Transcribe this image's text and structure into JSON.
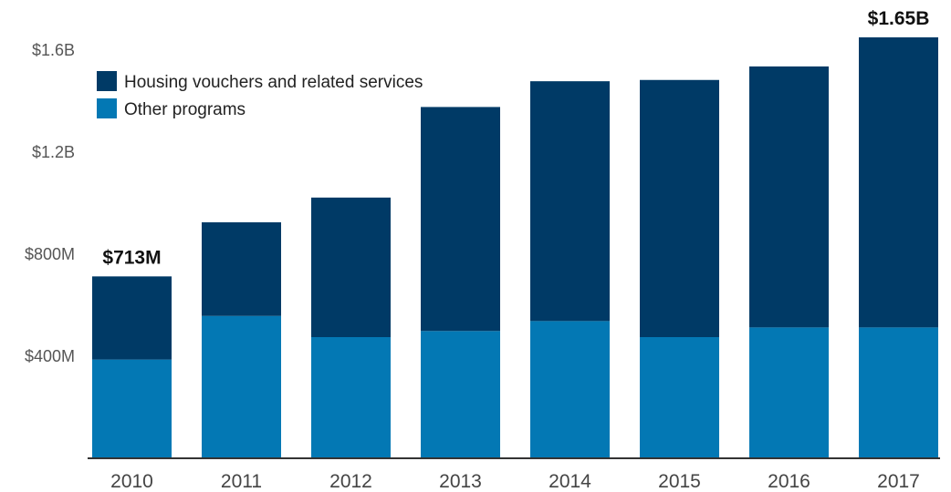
{
  "chart_data": {
    "type": "bar",
    "stacked": true,
    "title": "",
    "xlabel": "",
    "ylabel": "",
    "categories": [
      "2010",
      "2011",
      "2012",
      "2013",
      "2014",
      "2015",
      "2016",
      "2017"
    ],
    "series": [
      {
        "name": "Other programs",
        "color": "#0378b4",
        "values": [
          387,
          558,
          475,
          499,
          538,
          475,
          513,
          513
        ]
      },
      {
        "name": "Housing vouchers and related services",
        "color": "#003a66",
        "values": [
          326,
          367,
          547,
          878,
          940,
          1008,
          1023,
          1137
        ]
      }
    ],
    "ylim": [
      0,
      1700
    ],
    "yticks": [
      {
        "value": 400,
        "label": "$400M"
      },
      {
        "value": 800,
        "label": "$800M"
      },
      {
        "value": 1200,
        "label": "$1.2B"
      },
      {
        "value": 1600,
        "label": "$1.6B"
      }
    ],
    "grid": false,
    "legend": {
      "position": "top-left",
      "entries": [
        {
          "label": "Housing vouchers and related services",
          "color": "#003a66"
        },
        {
          "label": "Other programs",
          "color": "#0378b4"
        }
      ]
    },
    "annotations": [
      {
        "category": "2010",
        "text": "$713M"
      },
      {
        "category": "2017",
        "text": "$1.65B"
      }
    ]
  }
}
